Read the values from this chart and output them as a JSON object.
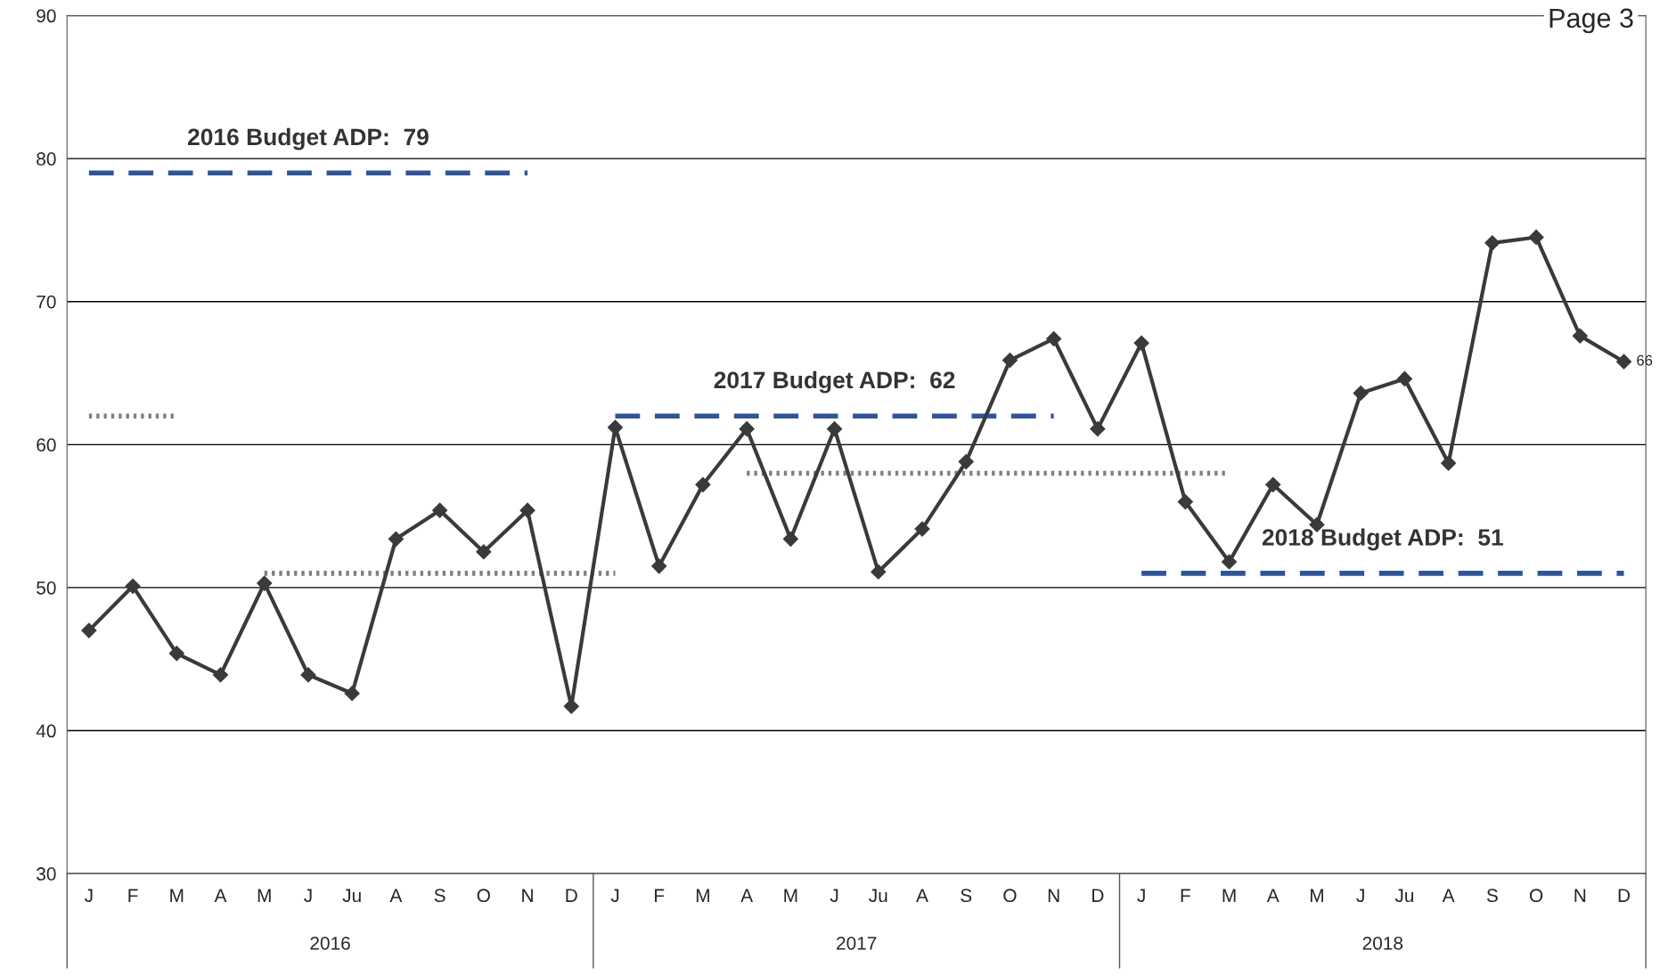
{
  "chart_data": {
    "type": "line",
    "categories": [
      "J",
      "F",
      "M",
      "A",
      "M",
      "J",
      "Ju",
      "A",
      "S",
      "O",
      "N",
      "D",
      "J",
      "F",
      "M",
      "A",
      "M",
      "J",
      "Ju",
      "A",
      "S",
      "O",
      "N",
      "D",
      "J",
      "F",
      "M",
      "A",
      "M",
      "J",
      "Ju",
      "A",
      "S",
      "O",
      "N",
      "D"
    ],
    "series": [
      {
        "color": "#3a3a3a",
        "marker": "diamond",
        "line_style": "solid",
        "values": [
          47.0,
          50.1,
          45.4,
          43.9,
          50.3,
          43.9,
          42.6,
          53.4,
          55.4,
          52.5,
          55.4,
          41.7,
          61.2,
          51.5,
          57.2,
          61.1,
          53.4,
          61.1,
          51.1,
          54.1,
          58.8,
          65.9,
          67.4,
          61.1,
          67.1,
          56.0,
          51.8,
          57.2,
          54.4,
          63.6,
          64.6,
          58.7,
          74.1,
          74.5,
          67.6,
          65.8
        ],
        "value_labels": [
          null,
          null,
          null,
          null,
          null,
          null,
          null,
          null,
          null,
          null,
          null,
          null,
          null,
          null,
          null,
          null,
          null,
          null,
          null,
          null,
          null,
          null,
          null,
          null,
          null,
          null,
          null,
          null,
          null,
          null,
          null,
          null,
          null,
          null,
          null,
          "66"
        ]
      },
      {
        "name": "2016 Budget ADP:  79",
        "color": "#2f5597",
        "marker": "none",
        "line_style": "dashed",
        "values": [
          79,
          79,
          79,
          79,
          79,
          79,
          79,
          79,
          79,
          79,
          79,
          null,
          null,
          null,
          null,
          null,
          null,
          null,
          null,
          null,
          null,
          null,
          null,
          null,
          null,
          null,
          null,
          null,
          null,
          null,
          null,
          null,
          null,
          null,
          null,
          null
        ]
      },
      {
        "name": "2017 Budget ADP:  62",
        "color": "#2f5597",
        "marker": "none",
        "line_style": "dashed",
        "values": [
          null,
          null,
          null,
          null,
          null,
          null,
          null,
          null,
          null,
          null,
          null,
          null,
          62,
          62,
          62,
          62,
          62,
          62,
          62,
          62,
          62,
          62,
          62,
          null,
          null,
          null,
          null,
          null,
          null,
          null,
          null,
          null,
          null,
          null,
          null,
          null
        ]
      },
      {
        "name": "2018 Budget ADP:  51",
        "color": "#2f5597",
        "marker": "none",
        "line_style": "dashed",
        "values": [
          null,
          null,
          null,
          null,
          null,
          null,
          null,
          null,
          null,
          null,
          null,
          null,
          null,
          null,
          null,
          null,
          null,
          null,
          null,
          null,
          null,
          null,
          null,
          null,
          51,
          51,
          51,
          51,
          51,
          51,
          51,
          51,
          51,
          51,
          51,
          51
        ]
      },
      {
        "color": "#7f7f7f",
        "marker": "none",
        "line_style": "dotted",
        "values": [
          62,
          62,
          62,
          null,
          null,
          null,
          null,
          null,
          null,
          null,
          null,
          null,
          null,
          null,
          null,
          null,
          null,
          null,
          null,
          null,
          null,
          null,
          null,
          null,
          null,
          null,
          null,
          null,
          null,
          null,
          null,
          null,
          null,
          null,
          null,
          null
        ]
      },
      {
        "color": "#7f7f7f",
        "marker": "none",
        "line_style": "dotted",
        "values": [
          null,
          null,
          null,
          null,
          51,
          51,
          51,
          51,
          51,
          51,
          51,
          51,
          51,
          null,
          null,
          null,
          null,
          null,
          null,
          null,
          null,
          null,
          null,
          null,
          null,
          null,
          null,
          null,
          null,
          null,
          null,
          null,
          null,
          null,
          null,
          null
        ]
      },
      {
        "color": "#7f7f7f",
        "marker": "none",
        "line_style": "dotted",
        "values": [
          null,
          null,
          null,
          null,
          null,
          null,
          null,
          null,
          null,
          null,
          null,
          null,
          null,
          null,
          null,
          58,
          58,
          58,
          58,
          58,
          58,
          58,
          58,
          58,
          58,
          58,
          58,
          null,
          null,
          null,
          null,
          null,
          null,
          null,
          null,
          null
        ]
      }
    ],
    "ylim": [
      30,
      90
    ],
    "yticks": [
      30,
      40,
      50,
      60,
      70,
      80,
      90
    ],
    "grid": "y",
    "annotations": [
      "2016",
      "2017",
      "2018",
      "Page 3"
    ]
  }
}
